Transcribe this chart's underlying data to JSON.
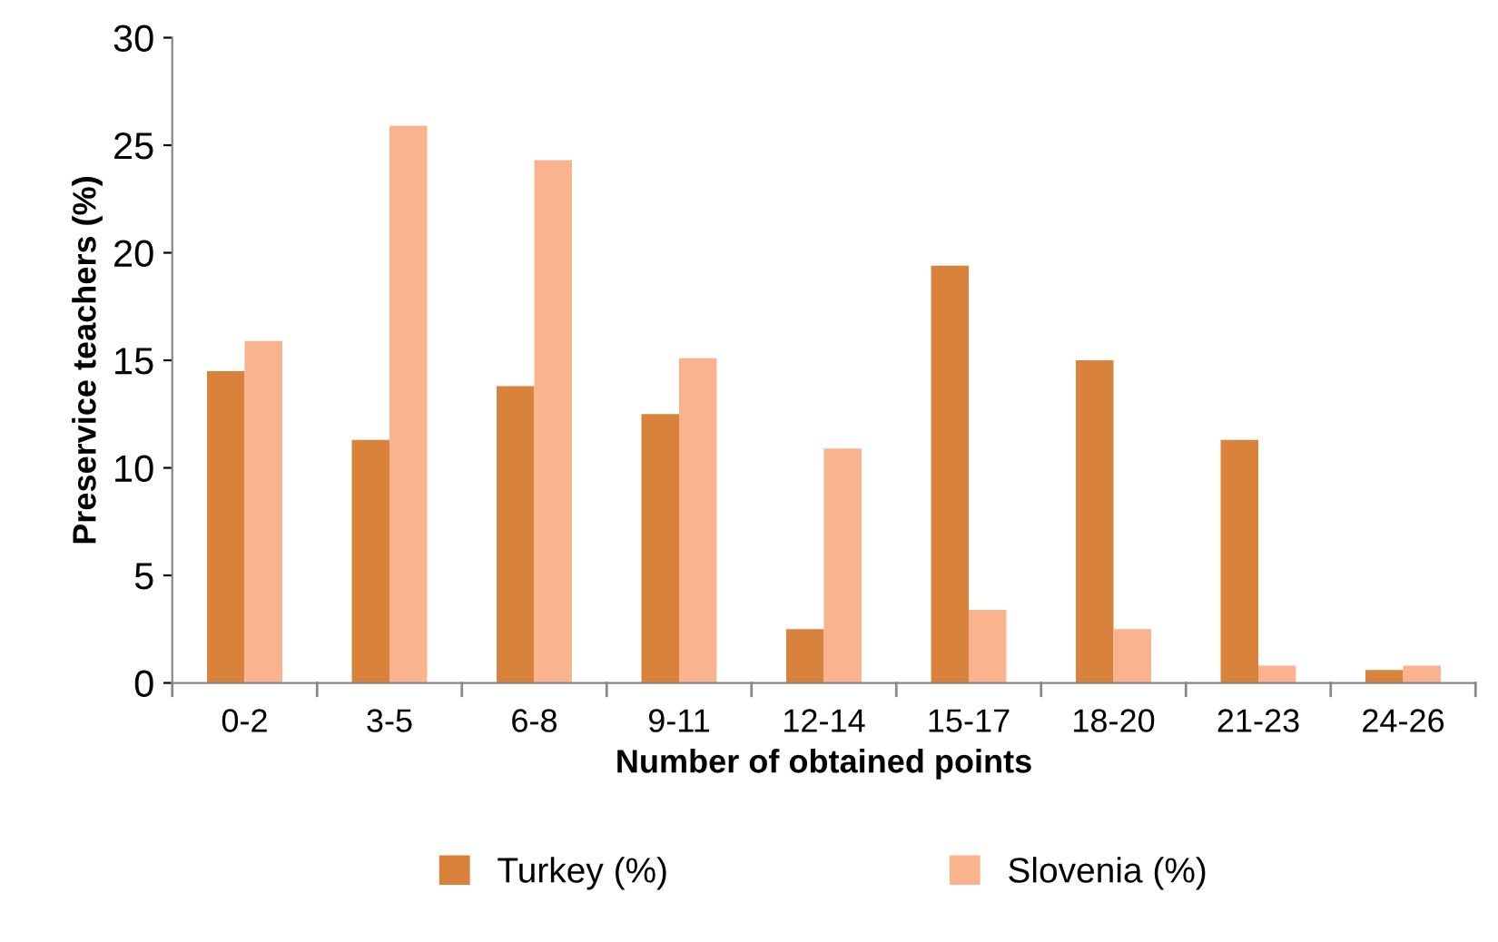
{
  "chart_data": {
    "type": "bar",
    "xlabel": "Number of obtained points",
    "ylabel": "Preservice teachers (%)",
    "categories": [
      "0-2",
      "3-5",
      "6-8",
      "9-11",
      "12-14",
      "15-17",
      "18-20",
      "21-23",
      "24-26"
    ],
    "series": [
      {
        "name": "Turkey (%)",
        "color": "#d9823b",
        "values": [
          14.5,
          11.3,
          13.8,
          12.5,
          2.5,
          19.4,
          15.0,
          11.3,
          0.6
        ]
      },
      {
        "name": "Slovenia (%)",
        "color": "#f9b48e",
        "values": [
          15.9,
          25.9,
          24.3,
          15.1,
          10.9,
          3.4,
          2.5,
          0.8,
          0.8
        ]
      }
    ],
    "ylim": [
      0,
      30
    ],
    "yticks": [
      0,
      5,
      10,
      15,
      20,
      25,
      30
    ],
    "grid": false,
    "legend": "bottom"
  }
}
